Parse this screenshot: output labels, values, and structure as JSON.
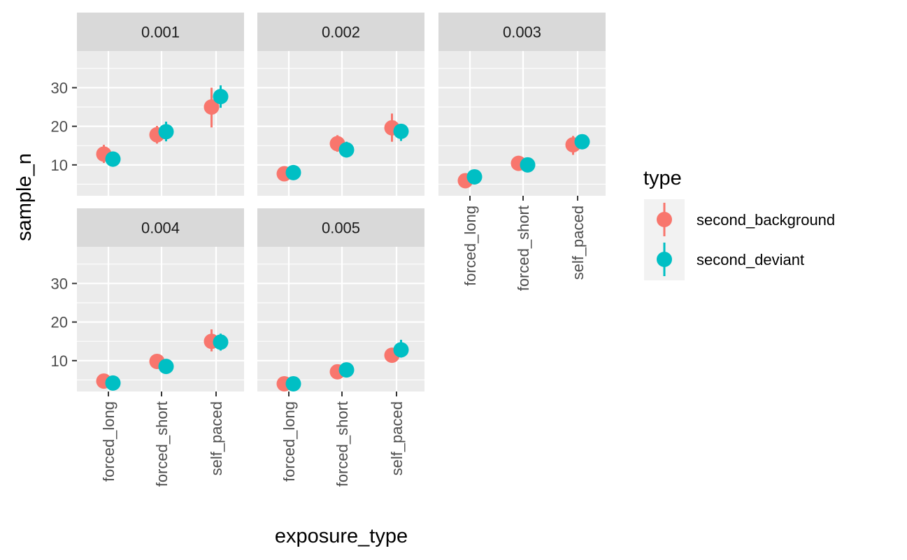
{
  "chart_data": {
    "type": "scatter",
    "subtype": "faceted point-range",
    "xlabel": "exposure_type",
    "ylabel": "sample_n",
    "categories": [
      "forced_long",
      "forced_short",
      "self_paced"
    ],
    "ylim": [
      2,
      39.5
    ],
    "yticks": [
      "10",
      "20",
      "30"
    ],
    "grid": true,
    "legend": {
      "title": "type",
      "position": "right",
      "entries": [
        {
          "name": "second_background",
          "color": "#F8766D"
        },
        {
          "name": "second_deviant",
          "color": "#00BFC4"
        }
      ]
    },
    "facets": [
      {
        "label": "0.001",
        "series": [
          {
            "name": "second_background",
            "y": [
              12.8,
              17.8,
              25.0
            ],
            "lo": [
              10.5,
              15.5,
              19.7
            ],
            "hi": [
              15.2,
              20.1,
              30.0
            ]
          },
          {
            "name": "second_deviant",
            "y": [
              11.5,
              18.6,
              27.7
            ],
            "lo": [
              9.5,
              16.1,
              24.8
            ],
            "hi": [
              13.4,
              21.2,
              30.6
            ]
          }
        ]
      },
      {
        "label": "0.002",
        "series": [
          {
            "name": "second_background",
            "y": [
              7.7,
              15.5,
              19.6
            ],
            "lo": [
              6.4,
              13.4,
              16.0
            ],
            "hi": [
              8.9,
              17.7,
              23.3
            ]
          },
          {
            "name": "second_deviant",
            "y": [
              8.0,
              13.9,
              18.7
            ],
            "lo": [
              6.7,
              11.9,
              16.2
            ],
            "hi": [
              9.6,
              16.0,
              20.6
            ]
          }
        ]
      },
      {
        "label": "0.003",
        "series": [
          {
            "name": "second_background",
            "y": [
              5.9,
              10.4,
              15.2
            ],
            "lo": [
              5.0,
              9.0,
              12.6
            ],
            "hi": [
              6.8,
              11.6,
              17.5
            ]
          },
          {
            "name": "second_deviant",
            "y": [
              6.9,
              10.0,
              16.0
            ],
            "lo": [
              5.9,
              8.7,
              14.1
            ],
            "hi": [
              7.9,
              11.3,
              17.7
            ]
          }
        ]
      },
      {
        "label": "0.004",
        "series": [
          {
            "name": "second_background",
            "y": [
              4.7,
              9.8,
              15.0
            ],
            "lo": [
              3.8,
              8.5,
              12.4
            ],
            "hi": [
              5.6,
              11.0,
              18.1
            ]
          },
          {
            "name": "second_deviant",
            "y": [
              4.2,
              8.5,
              14.8
            ],
            "lo": [
              3.4,
              7.3,
              12.6
            ],
            "hi": [
              5.0,
              9.6,
              17.0
            ]
          }
        ]
      },
      {
        "label": "0.005",
        "series": [
          {
            "name": "second_background",
            "y": [
              4.0,
              7.1,
              11.4
            ],
            "lo": [
              3.3,
              6.2,
              9.8
            ],
            "hi": [
              4.7,
              8.0,
              13.2
            ]
          },
          {
            "name": "second_deviant",
            "y": [
              4.0,
              7.6,
              12.8
            ],
            "lo": [
              3.3,
              6.6,
              10.8
            ],
            "hi": [
              4.7,
              8.7,
              15.4
            ]
          }
        ]
      }
    ]
  }
}
